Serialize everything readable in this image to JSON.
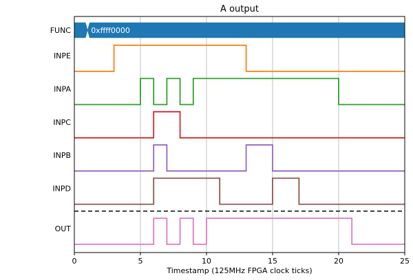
{
  "chart_data": {
    "type": "line",
    "title": "A output",
    "xlabel": "Timestamp (125MHz FPGA clock ticks)",
    "ylabel": "",
    "xlim": [
      0,
      25
    ],
    "xticks": [
      "0",
      "5",
      "10",
      "15",
      "20",
      "25"
    ],
    "grid": "vertical",
    "bus": {
      "name": "FUNC",
      "color": "#1f77b4",
      "segments": [
        {
          "start": 0,
          "end": 1,
          "label": ""
        },
        {
          "start": 1,
          "end": 25,
          "label": "0xffff0000"
        }
      ]
    },
    "series": [
      {
        "name": "INPE",
        "color": "#ff7f0e",
        "edges": [
          0,
          3,
          13,
          25
        ],
        "initial": 0
      },
      {
        "name": "INPA",
        "color": "#2ca02c",
        "edges": [
          0,
          5,
          6,
          7,
          8,
          9,
          20,
          25
        ],
        "initial": 0
      },
      {
        "name": "INPC",
        "color": "#d62728",
        "edges": [
          0,
          6,
          8,
          25
        ],
        "initial": 0
      },
      {
        "name": "INPB",
        "color": "#9467bd",
        "edges": [
          0,
          6,
          7,
          13,
          15,
          25
        ],
        "initial": 0
      },
      {
        "name": "INPD",
        "color": "#8c564b",
        "edges": [
          0,
          6,
          11,
          15,
          17,
          25
        ],
        "initial": 0
      },
      {
        "name": "OUT",
        "color": "#e377c2",
        "edges": [
          0,
          6,
          7,
          8,
          9,
          10,
          21,
          25
        ],
        "initial": 0
      }
    ],
    "separator_after": "INPD"
  }
}
